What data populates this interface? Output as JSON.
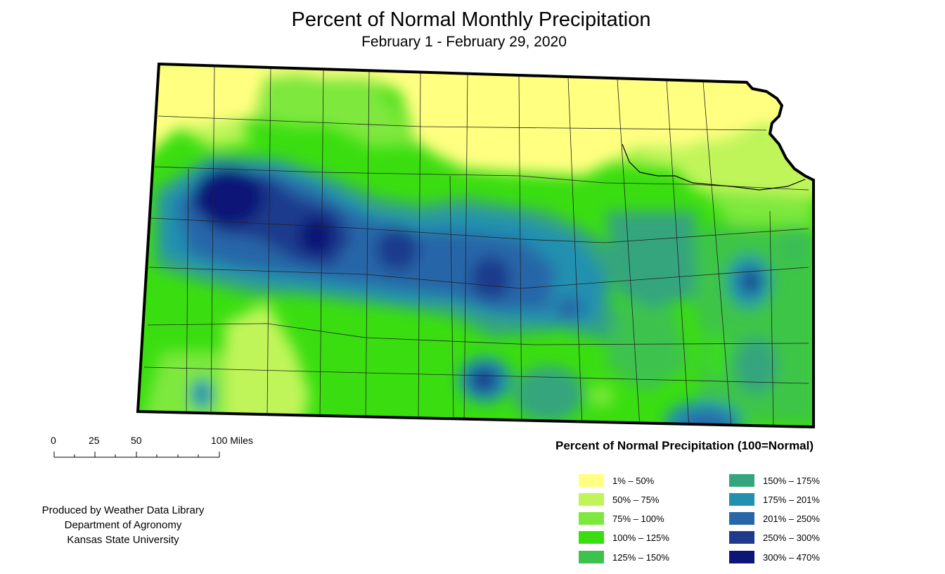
{
  "title": "Percent of Normal Monthly Precipitation",
  "subtitle": "February 1 - February 29, 2020",
  "scale": {
    "labels": [
      "0",
      "25",
      "50",
      "100 Miles"
    ]
  },
  "credit": {
    "line1": "Produced by Weather Data Library",
    "line2": "Department of Agronomy",
    "line3": "Kansas State University"
  },
  "legend": {
    "title": "Percent of Normal Precipitation (100=Normal)",
    "items": [
      {
        "label": "1% – 50%",
        "color": "#ffff80"
      },
      {
        "label": "50% – 75%",
        "color": "#c0f55a"
      },
      {
        "label": "75% – 100%",
        "color": "#7ee83e"
      },
      {
        "label": "100% – 125%",
        "color": "#3ade10"
      },
      {
        "label": "125% – 150%",
        "color": "#3ec24e"
      },
      {
        "label": "150% – 175%",
        "color": "#35a57e"
      },
      {
        "label": "175% – 201%",
        "color": "#2390b0"
      },
      {
        "label": "201% – 250%",
        "color": "#2766a8"
      },
      {
        "label": "250% – 300%",
        "color": "#1f3a8c"
      },
      {
        "label": "300% – 470%",
        "color": "#0d1677"
      }
    ]
  }
}
